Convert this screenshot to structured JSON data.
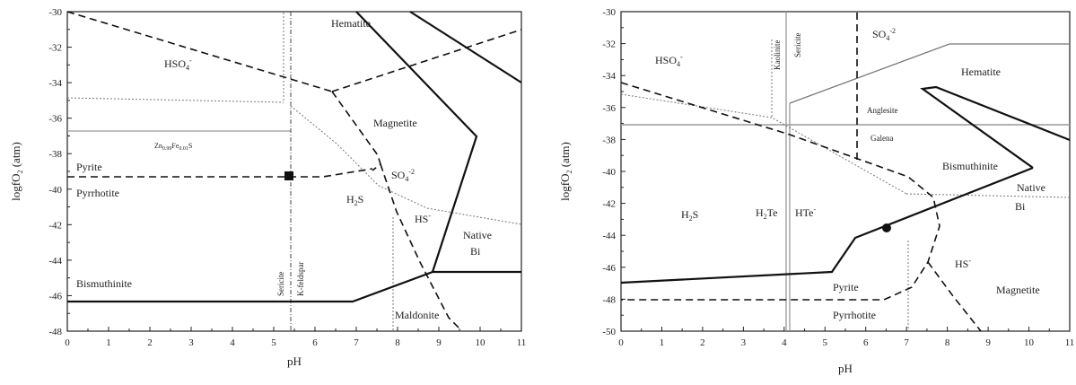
{
  "left_panel": {
    "x_axis": {
      "label": "pH",
      "min": 0,
      "max": 11,
      "ticks": [
        "0",
        "1",
        "2",
        "3",
        "4",
        "5",
        "6",
        "7",
        "8",
        "9",
        "10",
        "11"
      ]
    },
    "y_axis": {
      "label": "logfO",
      "label_sub": "2",
      "label_suffix": " (atm)",
      "min": -48,
      "max": -30,
      "ticks": [
        "-30",
        "-32",
        "-34",
        "-36",
        "-38",
        "-40",
        "-42",
        "-44",
        "-46",
        "-48"
      ]
    },
    "fields": {
      "hematite": "Hematite",
      "hso4": "HSO",
      "hso4_sub": "4",
      "hso4_sup": "-",
      "magnetite": "Magnetite",
      "zn_fe_s": "Zn",
      "zn_sub": "0.99",
      "fe": "Fe",
      "fe_sub": "0.01",
      "s": "S",
      "pyrite": "Pyrite",
      "pyrrhotite": "Pyrrhotite",
      "so4": "SO",
      "so4_sub": "4",
      "so4_sup": "-2",
      "h2s": "H",
      "h2s_sub": "2",
      "h2s_tail": "S",
      "hs": "HS",
      "hs_sup": "-",
      "native": "Native",
      "bi": "Bi",
      "bismuthinite": "Bismuthinite",
      "sericite": "Sericite",
      "kfeldspar": "K-feldspar",
      "maldonite": "Maldonite"
    }
  },
  "right_panel": {
    "x_axis": {
      "label": "pH",
      "min": 0,
      "max": 11,
      "ticks": [
        "0",
        "1",
        "2",
        "3",
        "4",
        "5",
        "6",
        "7",
        "8",
        "9",
        "10",
        "11"
      ]
    },
    "y_axis": {
      "label": "logfO",
      "label_sub": "2",
      "label_suffix": " (atm)",
      "min": -50,
      "max": -30,
      "ticks": [
        "-30",
        "-32",
        "-34",
        "-36",
        "-38",
        "-40",
        "-42",
        "-44",
        "-46",
        "-48",
        "-50"
      ]
    },
    "fields": {
      "hso4": "HSO",
      "hso4_sub": "4",
      "hso4_sup": "-",
      "kaolinite": "Kaolinite",
      "sericite": "Sericite",
      "so4": "SO",
      "so4_sub": "4",
      "so4_sup": "-2",
      "hematite": "Hematite",
      "anglesite": "Anglesite",
      "galena": "Galena",
      "bismuthinite": "Bismuthinite",
      "native": "Native",
      "bi": "Bi",
      "h2s": "H",
      "h2s_sub": "2",
      "h2s_tail": "S",
      "h2te": "H",
      "h2te_sub": "2",
      "h2te_tail": "Te",
      "hte": "HTe",
      "hte_sup": "-",
      "hs": "HS",
      "hs_sup": "-",
      "pyrite": "Pyrite",
      "pyrrhotite": "Pyrrhotite",
      "magnetite": "Magnetite"
    }
  }
}
